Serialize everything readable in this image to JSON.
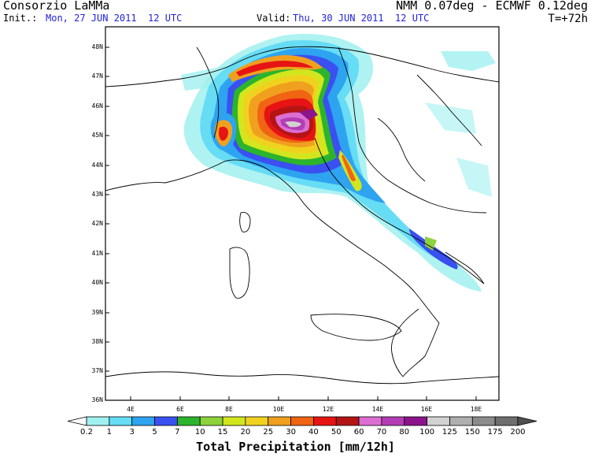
{
  "header": {
    "title": "Consorzio LaMMa",
    "model": "NMM 0.07deg - ECMWF 0.12deg",
    "init_label": "Init.:",
    "init_value": "Mon, 27 JUN 2011  12 UTC",
    "valid_label": "Valid:",
    "valid_value": "Thu, 30 JUN 2011  12 UTC",
    "lead": "T=+72h"
  },
  "map": {
    "lat_labels": [
      "48N",
      "47N",
      "46N",
      "45N",
      "44N",
      "43N",
      "42N",
      "41N",
      "40N",
      "39N",
      "38N",
      "37N",
      "36N"
    ],
    "lon_labels": [
      "4E",
      "6E",
      "8E",
      "10E",
      "12E",
      "14E",
      "16E",
      "18E"
    ],
    "lat_range": [
      36,
      48.5
    ],
    "lon_range": [
      2.5,
      19.5
    ]
  },
  "colorbar": {
    "title": "Total Precipitation [mm/12h]",
    "levels": [
      "0.2",
      "1",
      "3",
      "5",
      "7",
      "10",
      "15",
      "20",
      "25",
      "30",
      "40",
      "50",
      "60",
      "70",
      "80",
      "100",
      "125",
      "150",
      "175",
      "200"
    ],
    "colors": [
      "#ffffff",
      "#a0f0f0",
      "#66dcf5",
      "#2ea3f0",
      "#3a50f0",
      "#2cb42c",
      "#8cd23c",
      "#d2e61e",
      "#f0d21e",
      "#f0a01e",
      "#f06414",
      "#e61414",
      "#b41414",
      "#dc6ed2",
      "#b43cb4",
      "#8c148c",
      "#d2d2d2",
      "#afafaf",
      "#8c8c8c",
      "#6e6e6e",
      "#505050"
    ]
  }
}
